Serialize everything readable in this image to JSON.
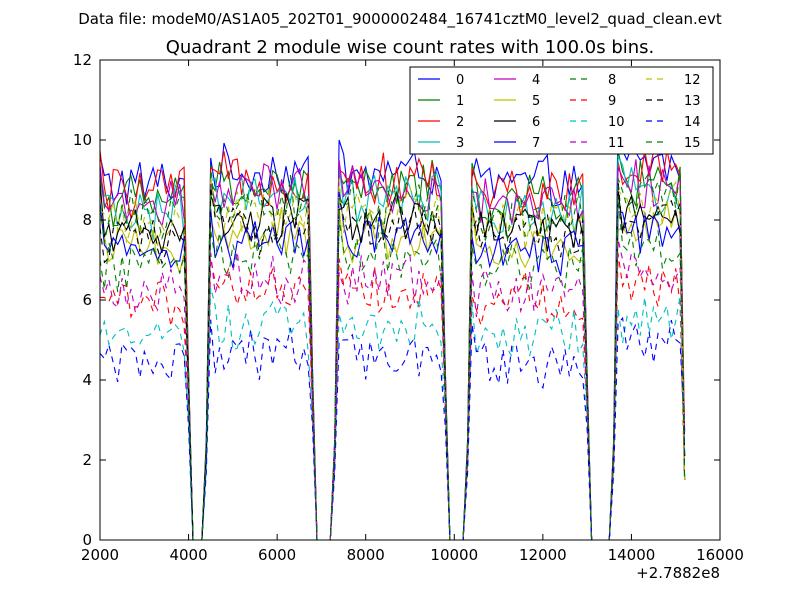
{
  "chart_data": {
    "type": "line",
    "suptitle": "Data file: modeM0/AS1A05_202T01_9000002484_16741cztM0_level2_quad_clean.evt",
    "title": "Quadrant 2 module wise count rates with 100.0s bins.",
    "xlabel": "",
    "ylabel": "",
    "xlim": [
      2000,
      16000
    ],
    "ylim": [
      0,
      12
    ],
    "xticks": [
      2000,
      4000,
      6000,
      8000,
      10000,
      12000,
      14000,
      16000
    ],
    "xtick_labels": [
      "2000",
      "4000",
      "6000",
      "8000",
      "10000",
      "12000",
      "14000",
      "16000"
    ],
    "yticks": [
      0,
      2,
      4,
      6,
      8,
      10,
      12
    ],
    "ytick_labels": [
      "0",
      "2",
      "4",
      "6",
      "8",
      "10",
      "12"
    ],
    "x_offset_label": "+2.7882e8",
    "grid": false,
    "legend_position": "top-right",
    "legend_columns": 4,
    "bin_size_s": 100,
    "segments": [
      [
        2000,
        3900
      ],
      [
        4500,
        6700
      ],
      [
        7400,
        9700
      ],
      [
        10400,
        12900
      ],
      [
        13700,
        15100
      ]
    ],
    "series": [
      {
        "name": "0",
        "color": "#0000ff",
        "dash": false,
        "base": 8.9,
        "drop": 4.2
      },
      {
        "name": "1",
        "color": "#008000",
        "dash": false,
        "base": 8.5,
        "drop": 4.0
      },
      {
        "name": "2",
        "color": "#ff0000",
        "dash": false,
        "base": 8.7,
        "drop": 4.1
      },
      {
        "name": "3",
        "color": "#00bfbf",
        "dash": false,
        "base": 8.2,
        "drop": 3.9
      },
      {
        "name": "4",
        "color": "#bf00bf",
        "dash": false,
        "base": 8.4,
        "drop": 4.0
      },
      {
        "name": "5",
        "color": "#bfbf00",
        "dash": false,
        "base": 7.3,
        "drop": 3.7
      },
      {
        "name": "6",
        "color": "#000000",
        "dash": false,
        "base": 7.7,
        "drop": 3.8
      },
      {
        "name": "7",
        "color": "#0000ff",
        "dash": false,
        "base": 7.2,
        "drop": 3.7
      },
      {
        "name": "8",
        "color": "#008000",
        "dash": true,
        "base": 6.9,
        "drop": 3.5
      },
      {
        "name": "9",
        "color": "#ff0000",
        "dash": true,
        "base": 6.0,
        "drop": 3.3
      },
      {
        "name": "10",
        "color": "#00bfbf",
        "dash": true,
        "base": 5.1,
        "drop": 3.0
      },
      {
        "name": "11",
        "color": "#bf00bf",
        "dash": true,
        "base": 6.2,
        "drop": 3.3
      },
      {
        "name": "12",
        "color": "#bfbf00",
        "dash": true,
        "base": 7.9,
        "drop": 3.8
      },
      {
        "name": "13",
        "color": "#000000",
        "dash": true,
        "base": 7.5,
        "drop": 3.7
      },
      {
        "name": "14",
        "color": "#0000ff",
        "dash": true,
        "base": 4.4,
        "drop": 2.8
      },
      {
        "name": "15",
        "color": "#008000",
        "dash": true,
        "base": 8.1,
        "drop": 3.9
      }
    ]
  }
}
